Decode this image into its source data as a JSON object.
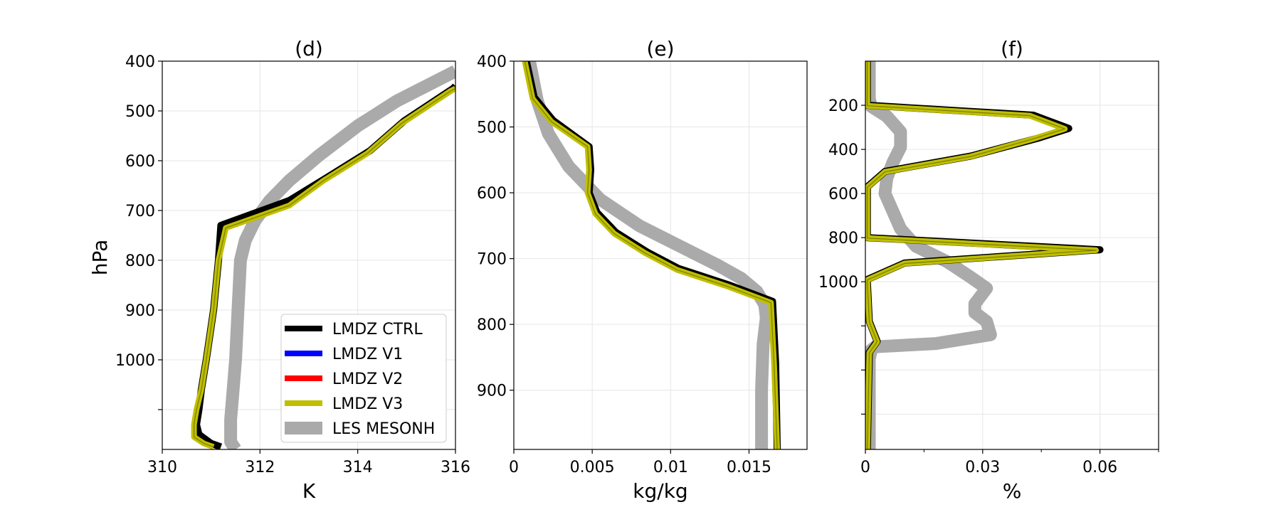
{
  "figure": {
    "ylabel": "hPa"
  },
  "legend": {
    "placement": "lower-right of panel (d)",
    "entries": [
      {
        "label": "LMDZ CTRL",
        "color": "#000000"
      },
      {
        "label": "LMDZ V1",
        "color": "#0000ff"
      },
      {
        "label": "LMDZ V2",
        "color": "#ff0000"
      },
      {
        "label": "LMDZ V3",
        "color": "#bfbf00"
      },
      {
        "label": "LES MESONH",
        "color": "#aaaaaa"
      }
    ]
  },
  "chart_data": [
    {
      "type": "line",
      "title": "(d)",
      "xlabel": "K",
      "xlim": [
        310,
        316
      ],
      "ylim": [
        1180,
        400
      ],
      "xticks": [
        310,
        312,
        314,
        316
      ],
      "xtick_labels": [
        "310",
        "312",
        "314",
        "316"
      ],
      "yticks": [
        400,
        500,
        600,
        700,
        800,
        900,
        1000,
        1100
      ],
      "ytick_labels": [
        "400",
        "500",
        "600",
        "700",
        "800",
        "900",
        "1000",
        ""
      ],
      "grid": true,
      "series": [
        {
          "name": "LES MESONH",
          "color": "#aaaaaa",
          "width": 18,
          "x": [
            311.5,
            311.4,
            311.4,
            311.45,
            311.5,
            311.55,
            311.6,
            311.7,
            311.9,
            312.2,
            312.6,
            313.2,
            314.0,
            314.8,
            315.6,
            316.0
          ],
          "y": [
            1180,
            1165,
            1120,
            1060,
            1000,
            900,
            800,
            760,
            720,
            680,
            640,
            590,
            530,
            480,
            440,
            420
          ]
        },
        {
          "name": "LMDZ CTRL",
          "color": "#000000",
          "width": 10,
          "x": [
            311.2,
            311.0,
            310.75,
            310.7,
            310.75,
            310.8,
            310.9,
            311.05,
            311.15,
            311.2,
            312.6,
            313.35,
            314.25,
            314.95,
            315.95,
            316.0
          ],
          "y": [
            1175,
            1168,
            1150,
            1130,
            1100,
            1060,
            1000,
            900,
            800,
            730,
            680,
            635,
            580,
            520,
            455,
            450
          ]
        },
        {
          "name": "LMDZ V3",
          "color": "#bfbf00",
          "width": 8,
          "x": [
            311.05,
            310.85,
            310.65,
            310.65,
            310.7,
            310.8,
            310.9,
            311.05,
            311.15,
            311.3,
            312.6,
            313.3,
            314.2,
            314.9,
            315.9,
            316.0
          ],
          "y": [
            1175,
            1168,
            1155,
            1130,
            1100,
            1060,
            1000,
            900,
            800,
            735,
            690,
            640,
            585,
            525,
            460,
            455
          ]
        }
      ]
    },
    {
      "type": "line",
      "title": "(e)",
      "xlabel": "kg/kg",
      "xlim": [
        0,
        0.0187
      ],
      "ylim": [
        990,
        400
      ],
      "xticks": [
        0,
        0.005,
        0.01,
        0.015
      ],
      "xtick_labels": [
        "0",
        "0.005",
        "0.01",
        "0.015"
      ],
      "yticks": [
        400,
        500,
        600,
        700,
        800,
        900
      ],
      "ytick_labels": [
        "400",
        "500",
        "600",
        "700",
        "800",
        "900"
      ],
      "grid": true,
      "series": [
        {
          "name": "LES MESONH",
          "color": "#aaaaaa",
          "width": 18,
          "x": [
            0.0158,
            0.0158,
            0.0159,
            0.0161,
            0.016,
            0.0155,
            0.0145,
            0.013,
            0.0105,
            0.008,
            0.0055,
            0.0035,
            0.0022,
            0.0015,
            0.001
          ],
          "y": [
            990,
            900,
            830,
            790,
            770,
            750,
            730,
            710,
            680,
            650,
            610,
            560,
            510,
            460,
            400
          ]
        },
        {
          "name": "LMDZ CTRL",
          "color": "#000000",
          "width": 10,
          "x": [
            0.0168,
            0.0167,
            0.0165,
            0.0137,
            0.0105,
            0.0085,
            0.0065,
            0.0053,
            0.0048,
            0.0049,
            0.0048,
            0.0025,
            0.0013,
            0.0008
          ],
          "y": [
            990,
            860,
            765,
            740,
            715,
            690,
            660,
            630,
            600,
            565,
            530,
            490,
            455,
            400
          ]
        },
        {
          "name": "LMDZ V3",
          "color": "#bfbf00",
          "width": 8,
          "x": [
            0.0168,
            0.0166,
            0.0164,
            0.0136,
            0.0104,
            0.0084,
            0.0064,
            0.0052,
            0.0047,
            0.0048,
            0.0047,
            0.0024,
            0.0012,
            0.0007
          ],
          "y": [
            990,
            860,
            767,
            742,
            717,
            692,
            662,
            632,
            600,
            565,
            530,
            492,
            457,
            400
          ]
        }
      ]
    },
    {
      "type": "line",
      "title": "(f)",
      "xlabel": "%",
      "xlim": [
        0,
        0.075
      ],
      "ylim": [
        1760,
        0
      ],
      "xticks": [
        0,
        0.03,
        0.06
      ],
      "xtick_labels": [
        "0",
        "0.03",
        "0.06"
      ],
      "xminor": [
        0.015,
        0.045,
        0.075
      ],
      "yticks": [
        200,
        400,
        600,
        800,
        1000,
        1200,
        1400,
        1600
      ],
      "ytick_labels": [
        "200",
        "400",
        "600",
        "800",
        "1000",
        "",
        "",
        ""
      ],
      "grid": true,
      "series": [
        {
          "name": "LES MESONH",
          "color": "#aaaaaa",
          "width": 18,
          "x": [
            0.001,
            0.001,
            0.0015,
            0.0025,
            0.018,
            0.032,
            0.031,
            0.028,
            0.028,
            0.031,
            0.027,
            0.021,
            0.013,
            0.009,
            0.007,
            0.005,
            0.0055,
            0.007,
            0.009,
            0.009,
            0.0055,
            0.0015,
            0.001,
            0.001
          ],
          "y": [
            1760,
            1350,
            1310,
            1295,
            1280,
            1240,
            1180,
            1140,
            1100,
            1030,
            980,
            910,
            840,
            760,
            680,
            600,
            530,
            460,
            390,
            320,
            250,
            205,
            170,
            0
          ]
        },
        {
          "name": "LMDZ CTRL",
          "color": "#000000",
          "width": 10,
          "x": [
            0.0005,
            0.001,
            0.003,
            0.001,
            0.0005,
            0.0005,
            0.01,
            0.06,
            0.0005,
            0.0005,
            0.0005,
            0.005,
            0.027,
            0.044,
            0.052,
            0.043,
            0.0005,
            0.0005
          ],
          "y": [
            1760,
            1320,
            1270,
            1180,
            1000,
            990,
            915,
            855,
            800,
            780,
            570,
            500,
            430,
            350,
            305,
            245,
            200,
            0
          ]
        },
        {
          "name": "LMDZ V3",
          "color": "#bfbf00",
          "width": 8,
          "x": [
            0.0005,
            0.001,
            0.003,
            0.001,
            0.0005,
            0.0005,
            0.01,
            0.059,
            0.0005,
            0.0005,
            0.0005,
            0.005,
            0.027,
            0.043,
            0.051,
            0.042,
            0.0005,
            0.0005
          ],
          "y": [
            1760,
            1322,
            1272,
            1182,
            1002,
            992,
            917,
            857,
            802,
            782,
            572,
            502,
            432,
            352,
            307,
            247,
            202,
            0
          ]
        }
      ]
    }
  ]
}
